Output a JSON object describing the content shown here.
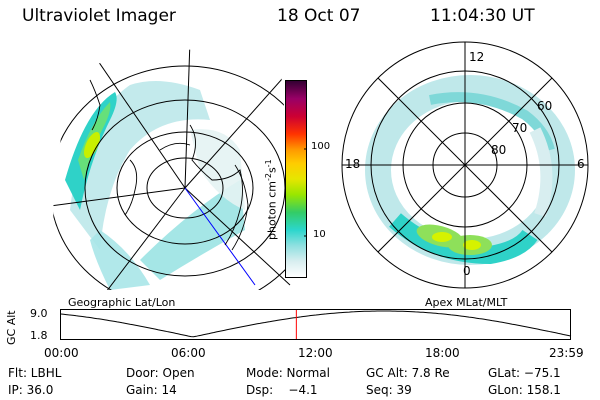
{
  "header": {
    "instrument": "Ultraviolet Imager",
    "date": "18 Oct 07",
    "time": "11:04:30 UT"
  },
  "left_map": {
    "label": "Geographic Lat/Lon"
  },
  "right_map": {
    "label": "Apex MLat/MLT",
    "mlt_labels": {
      "top": "12",
      "bottom": "0",
      "left": "18",
      "right": "6"
    },
    "lat_labels": [
      "60",
      "70",
      "80"
    ]
  },
  "colorbar": {
    "unit_label": "photon cm",
    "unit_sup1": "-2",
    "unit_mid": "s",
    "unit_sup2": "-1",
    "tick_labels": [
      "100",
      "10"
    ],
    "scale": "log",
    "colors": [
      "#ffffff",
      "#d8eef0",
      "#8fe0e0",
      "#2cd6cc",
      "#33cc66",
      "#99e600",
      "#e6e600",
      "#ffcc00",
      "#ff9900",
      "#ff3300",
      "#cc0033",
      "#990066",
      "#330033"
    ]
  },
  "altitude_plot": {
    "ylabel": "GC Alt",
    "y_ticks": [
      "9.0",
      "1.8"
    ],
    "x_ticks": [
      "00:00",
      "06:00",
      "12:00",
      "18:00",
      "23:59"
    ],
    "current_marker_hour": 11.075,
    "line_color": "#000000",
    "marker_color": "#ff0000"
  },
  "status": {
    "flt": "Flt: LBHL",
    "door": "Door: Open",
    "mode": "Mode: Normal",
    "gc_alt": "GC Alt: 7.8 Re",
    "glat": "GLat: −75.1",
    "ip": "IP: 36.0",
    "gain": "Gain: 14",
    "dsp": "Dsp:    −4.1",
    "seq": "Seq: 39",
    "glon": "GLon: 158.1"
  }
}
